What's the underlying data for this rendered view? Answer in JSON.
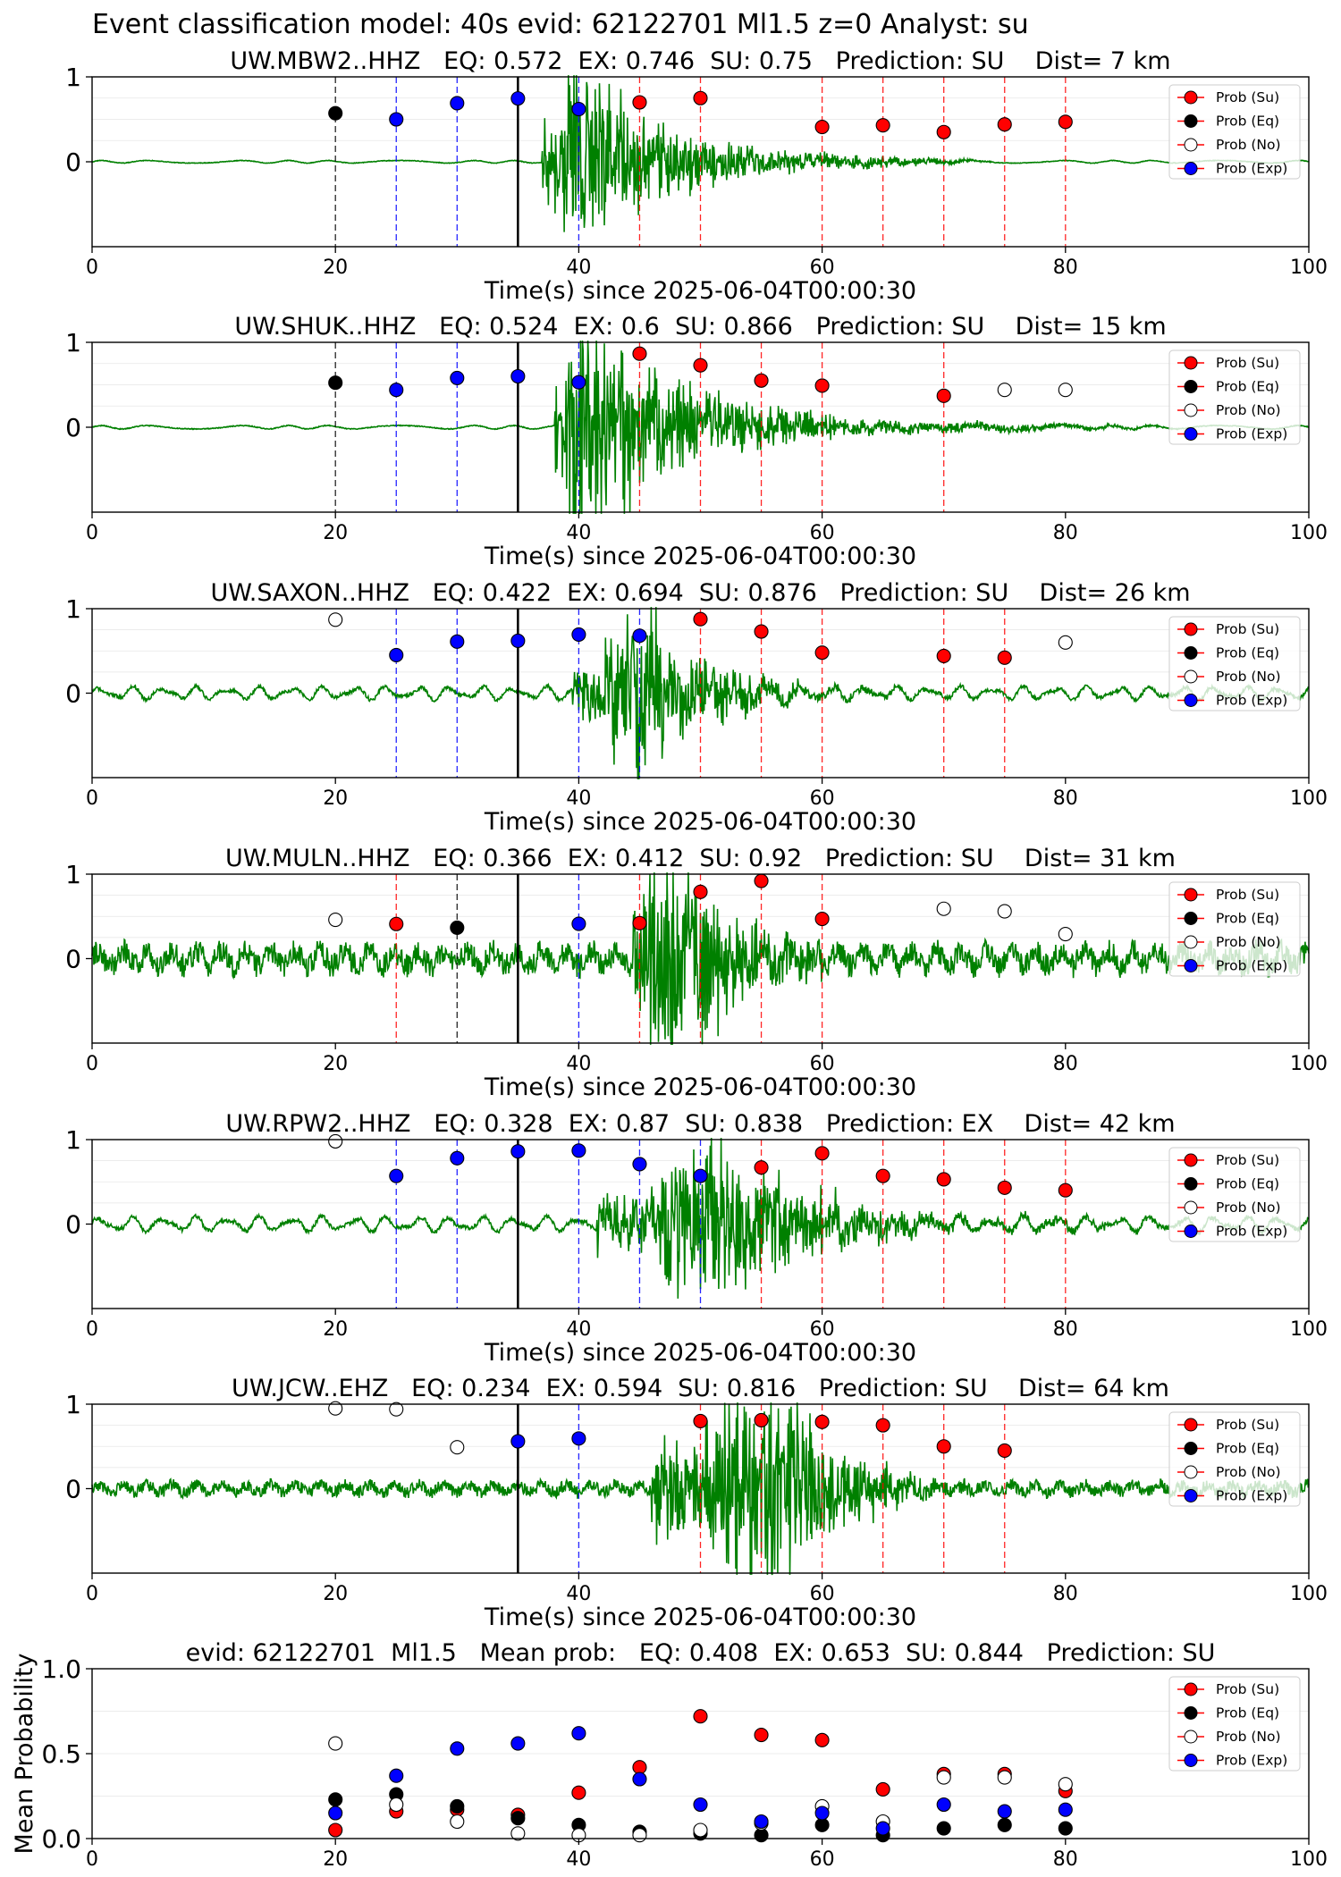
{
  "figure": {
    "suptitle": "Event classification model: 40s evid: 62122701 Ml1.5 z=0 Analyst: su"
  },
  "legend_entries": [
    {
      "label": "Prob (Su)",
      "color": "#ff0000",
      "filled": true
    },
    {
      "label": "Prob (Eq)",
      "color": "#000000",
      "filled": true
    },
    {
      "label": "Prob (No)",
      "color": "#ffffff",
      "filled": false
    },
    {
      "label": "Prob (Exp)",
      "color": "#0000ff",
      "filled": true
    }
  ],
  "colors": {
    "su": "#ff0000",
    "eq": "#000000",
    "no": "#ffffff",
    "exp": "#0000ff",
    "waveform": "#008000",
    "pick": "#000000"
  },
  "chart_data": [
    {
      "type": "scatter",
      "title": "UW.MBW2..HHZ   EQ: 0.572  EX: 0.746  SU: 0.75   Prediction: SU    Dist= 7 km",
      "xlabel": "Time(s) since 2025-06-04T00:00:30",
      "ylabel": "",
      "xlim": [
        0,
        100
      ],
      "ylim": [
        -1,
        1
      ],
      "xticks": [
        "0",
        "20",
        "40",
        "60",
        "80",
        "100"
      ],
      "yticks": [
        "0",
        "1"
      ],
      "pick_time": 35,
      "waveform": {
        "color": "#008000",
        "noise": 0.015,
        "noise_type": "smooth",
        "burst_start": 37,
        "burst_peak": 39.5,
        "burst_end": 58,
        "burst_amp": 0.95,
        "coda_amp": 0.18,
        "coda_end": 75,
        "hf": 1.6,
        "seed": 11
      },
      "points": [
        {
          "x": 20,
          "y": 0.572,
          "class": "eq"
        },
        {
          "x": 25,
          "y": 0.5,
          "class": "exp"
        },
        {
          "x": 30,
          "y": 0.69,
          "class": "exp"
        },
        {
          "x": 35,
          "y": 0.746,
          "class": "exp"
        },
        {
          "x": 40,
          "y": 0.62,
          "class": "exp"
        },
        {
          "x": 45,
          "y": 0.7,
          "class": "su"
        },
        {
          "x": 50,
          "y": 0.75,
          "class": "su"
        },
        {
          "x": 60,
          "y": 0.41,
          "class": "su"
        },
        {
          "x": 65,
          "y": 0.43,
          "class": "su"
        },
        {
          "x": 70,
          "y": 0.35,
          "class": "su"
        },
        {
          "x": 75,
          "y": 0.44,
          "class": "su"
        },
        {
          "x": 80,
          "y": 0.47,
          "class": "su"
        }
      ],
      "legend_position": "upper right"
    },
    {
      "type": "scatter",
      "title": "UW.SHUK..HHZ   EQ: 0.524  EX: 0.6  SU: 0.866   Prediction: SU    Dist= 15 km",
      "xlabel": "Time(s) since 2025-06-04T00:00:30",
      "ylabel": "",
      "xlim": [
        0,
        100
      ],
      "ylim": [
        -1,
        1
      ],
      "xticks": [
        "0",
        "20",
        "40",
        "60",
        "80",
        "100"
      ],
      "yticks": [
        "0",
        "1"
      ],
      "pick_time": 35,
      "waveform": {
        "color": "#008000",
        "noise": 0.02,
        "noise_type": "smooth",
        "burst_start": 38,
        "burst_peak": 39.5,
        "burst_end": 62,
        "burst_amp": 0.95,
        "coda_amp": 0.12,
        "coda_end": 90,
        "hf": 1.8,
        "seed": 23
      },
      "points": [
        {
          "x": 20,
          "y": 0.524,
          "class": "eq"
        },
        {
          "x": 25,
          "y": 0.44,
          "class": "exp"
        },
        {
          "x": 30,
          "y": 0.58,
          "class": "exp"
        },
        {
          "x": 35,
          "y": 0.6,
          "class": "exp"
        },
        {
          "x": 40,
          "y": 0.53,
          "class": "exp"
        },
        {
          "x": 45,
          "y": 0.866,
          "class": "su"
        },
        {
          "x": 50,
          "y": 0.73,
          "class": "su"
        },
        {
          "x": 55,
          "y": 0.55,
          "class": "su"
        },
        {
          "x": 60,
          "y": 0.49,
          "class": "su"
        },
        {
          "x": 70,
          "y": 0.37,
          "class": "su"
        },
        {
          "x": 75,
          "y": 0.44,
          "class": "no"
        },
        {
          "x": 80,
          "y": 0.44,
          "class": "no"
        }
      ],
      "legend_position": "upper right"
    },
    {
      "type": "scatter",
      "title": "UW.SAXON..HHZ   EQ: 0.422  EX: 0.694  SU: 0.876   Prediction: SU    Dist= 26 km",
      "xlabel": "Time(s) since 2025-06-04T00:00:30",
      "ylabel": "",
      "xlim": [
        0,
        100
      ],
      "ylim": [
        -1,
        1
      ],
      "xticks": [
        "0",
        "20",
        "40",
        "60",
        "80",
        "100"
      ],
      "yticks": [
        "0",
        "1"
      ],
      "pick_time": 35,
      "waveform": {
        "color": "#008000",
        "noise": 0.07,
        "noise_type": "swell",
        "burst_start": 39.5,
        "burst_peak": 44.5,
        "burst_end": 58,
        "burst_amp": 0.95,
        "coda_amp": 0.12,
        "coda_end": 70,
        "hf": 1.4,
        "seed": 37
      },
      "points": [
        {
          "x": 20,
          "y": 0.87,
          "class": "no"
        },
        {
          "x": 25,
          "y": 0.45,
          "class": "exp"
        },
        {
          "x": 30,
          "y": 0.61,
          "class": "exp"
        },
        {
          "x": 35,
          "y": 0.62,
          "class": "exp"
        },
        {
          "x": 40,
          "y": 0.694,
          "class": "exp"
        },
        {
          "x": 45,
          "y": 0.68,
          "class": "exp"
        },
        {
          "x": 50,
          "y": 0.876,
          "class": "su"
        },
        {
          "x": 55,
          "y": 0.73,
          "class": "su"
        },
        {
          "x": 60,
          "y": 0.48,
          "class": "su"
        },
        {
          "x": 70,
          "y": 0.44,
          "class": "su"
        },
        {
          "x": 75,
          "y": 0.42,
          "class": "su"
        },
        {
          "x": 80,
          "y": 0.6,
          "class": "no"
        }
      ],
      "legend_position": "upper right"
    },
    {
      "type": "scatter",
      "title": "UW.MULN..HHZ   EQ: 0.366  EX: 0.412  SU: 0.92   Prediction: SU    Dist= 31 km",
      "xlabel": "Time(s) since 2025-06-04T00:00:30",
      "ylabel": "",
      "xlim": [
        0,
        100
      ],
      "ylim": [
        -1,
        1
      ],
      "xticks": [
        "0",
        "20",
        "40",
        "60",
        "80",
        "100"
      ],
      "yticks": [
        "0",
        "1"
      ],
      "pick_time": 35,
      "waveform": {
        "color": "#008000",
        "noise": 0.18,
        "noise_type": "rough",
        "burst_start": 44.5,
        "burst_peak": 46,
        "burst_end": 60,
        "burst_amp": 0.95,
        "coda_amp": 0.05,
        "coda_end": 62,
        "hf": 2.4,
        "seed": 53
      },
      "points": [
        {
          "x": 20,
          "y": 0.46,
          "class": "no"
        },
        {
          "x": 25,
          "y": 0.41,
          "class": "su"
        },
        {
          "x": 30,
          "y": 0.366,
          "class": "eq"
        },
        {
          "x": 40,
          "y": 0.412,
          "class": "exp"
        },
        {
          "x": 45,
          "y": 0.42,
          "class": "su"
        },
        {
          "x": 50,
          "y": 0.79,
          "class": "su"
        },
        {
          "x": 55,
          "y": 0.92,
          "class": "su"
        },
        {
          "x": 60,
          "y": 0.47,
          "class": "su"
        },
        {
          "x": 70,
          "y": 0.59,
          "class": "no"
        },
        {
          "x": 75,
          "y": 0.56,
          "class": "no"
        },
        {
          "x": 80,
          "y": 0.29,
          "class": "no"
        }
      ],
      "legend_position": "upper right"
    },
    {
      "type": "scatter",
      "title": "UW.RPW2..HHZ   EQ: 0.328  EX: 0.87  SU: 0.838   Prediction: EX    Dist= 42 km",
      "xlabel": "Time(s) since 2025-06-04T00:00:30",
      "ylabel": "",
      "xlim": [
        0,
        100
      ],
      "ylim": [
        -1,
        1
      ],
      "xticks": [
        "0",
        "20",
        "40",
        "60",
        "80",
        "100"
      ],
      "yticks": [
        "0",
        "1"
      ],
      "pick_time": 35,
      "waveform": {
        "color": "#008000",
        "noise": 0.08,
        "noise_type": "swell",
        "burst_start": 41.5,
        "burst_peak": 51,
        "burst_end": 70,
        "burst_amp": 0.95,
        "coda_amp": 0.1,
        "coda_end": 100,
        "hf": 1.2,
        "seed": 71
      },
      "points": [
        {
          "x": 20,
          "y": 0.98,
          "class": "no"
        },
        {
          "x": 25,
          "y": 0.57,
          "class": "exp"
        },
        {
          "x": 30,
          "y": 0.78,
          "class": "exp"
        },
        {
          "x": 35,
          "y": 0.86,
          "class": "exp"
        },
        {
          "x": 40,
          "y": 0.87,
          "class": "exp"
        },
        {
          "x": 45,
          "y": 0.71,
          "class": "exp"
        },
        {
          "x": 50,
          "y": 0.57,
          "class": "exp"
        },
        {
          "x": 55,
          "y": 0.67,
          "class": "su"
        },
        {
          "x": 60,
          "y": 0.838,
          "class": "su"
        },
        {
          "x": 65,
          "y": 0.57,
          "class": "su"
        },
        {
          "x": 70,
          "y": 0.53,
          "class": "su"
        },
        {
          "x": 75,
          "y": 0.43,
          "class": "su"
        },
        {
          "x": 80,
          "y": 0.4,
          "class": "su"
        }
      ],
      "legend_position": "upper right"
    },
    {
      "type": "scatter",
      "title": "UW.JCW..EHZ   EQ: 0.234  EX: 0.594  SU: 0.816   Prediction: SU    Dist= 64 km",
      "xlabel": "Time(s) since 2025-06-04T00:00:30",
      "ylabel": "",
      "xlim": [
        0,
        100
      ],
      "ylim": [
        -1,
        1
      ],
      "xticks": [
        "0",
        "20",
        "40",
        "60",
        "80",
        "100"
      ],
      "yticks": [
        "0",
        "1"
      ],
      "pick_time": 35,
      "waveform": {
        "color": "#008000",
        "noise": 0.09,
        "noise_type": "rough",
        "burst_start": 46,
        "burst_peak": 56,
        "burst_end": 68,
        "burst_amp": 0.95,
        "coda_amp": 0.1,
        "coda_end": 78,
        "hf": 2.2,
        "seed": 89
      },
      "points": [
        {
          "x": 20,
          "y": 0.95,
          "class": "no"
        },
        {
          "x": 25,
          "y": 0.94,
          "class": "no"
        },
        {
          "x": 30,
          "y": 0.49,
          "class": "no"
        },
        {
          "x": 35,
          "y": 0.56,
          "class": "exp"
        },
        {
          "x": 40,
          "y": 0.594,
          "class": "exp"
        },
        {
          "x": 50,
          "y": 0.8,
          "class": "su"
        },
        {
          "x": 55,
          "y": 0.81,
          "class": "su"
        },
        {
          "x": 60,
          "y": 0.79,
          "class": "su"
        },
        {
          "x": 65,
          "y": 0.75,
          "class": "su"
        },
        {
          "x": 70,
          "y": 0.5,
          "class": "su"
        },
        {
          "x": 75,
          "y": 0.45,
          "class": "su"
        }
      ],
      "legend_position": "upper right"
    },
    {
      "type": "scatter",
      "title": "evid: 62122701  Ml1.5   Mean prob:   EQ: 0.408  EX: 0.653  SU: 0.844   Prediction: SU",
      "xlabel": "",
      "ylabel": "Mean Probability",
      "xlim": [
        0,
        100
      ],
      "ylim": [
        0,
        1
      ],
      "xticks": [
        "0",
        "20",
        "40",
        "60",
        "80",
        "100"
      ],
      "yticks": [
        "0.0",
        "0.5",
        "1.0"
      ],
      "x": [
        20,
        25,
        30,
        35,
        40,
        45,
        50,
        55,
        60,
        65,
        70,
        75,
        80
      ],
      "series": [
        {
          "name": "Prob (Su)",
          "class": "su",
          "values": [
            0.05,
            0.16,
            0.17,
            0.14,
            0.27,
            0.42,
            0.72,
            0.61,
            0.58,
            0.29,
            0.38,
            0.38,
            0.28
          ]
        },
        {
          "name": "Prob (Eq)",
          "class": "eq",
          "values": [
            0.23,
            0.26,
            0.19,
            0.12,
            0.08,
            0.04,
            0.03,
            0.02,
            0.08,
            0.02,
            0.06,
            0.08,
            0.06
          ]
        },
        {
          "name": "Prob (No)",
          "class": "no",
          "values": [
            0.56,
            0.2,
            0.1,
            0.03,
            0.02,
            0.02,
            0.05,
            0.09,
            0.19,
            0.1,
            0.36,
            0.36,
            0.32
          ]
        },
        {
          "name": "Prob (Exp)",
          "class": "exp",
          "values": [
            0.15,
            0.37,
            0.53,
            0.56,
            0.62,
            0.35,
            0.2,
            0.1,
            0.15,
            0.06,
            0.2,
            0.16,
            0.17
          ]
        }
      ],
      "legend_position": "upper right"
    }
  ]
}
